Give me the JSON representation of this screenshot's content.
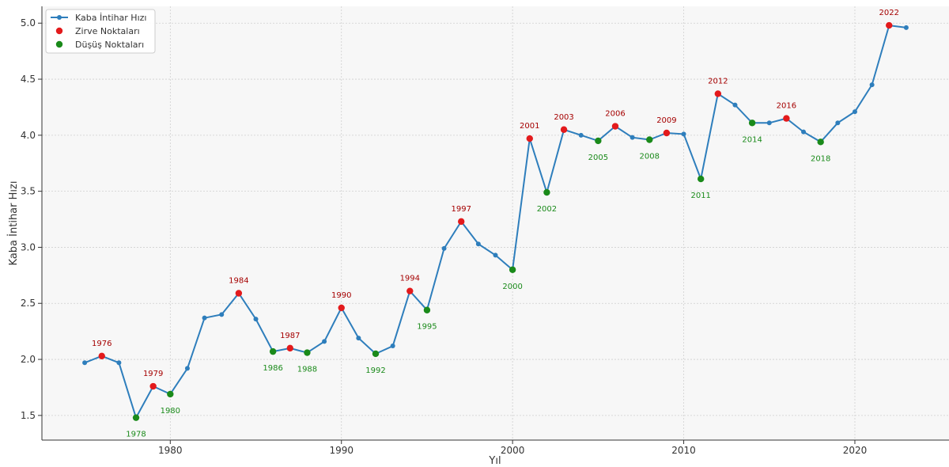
{
  "colors": {
    "line": "#2e7ebc",
    "peak": "#e31a1c",
    "trough": "#1a8a1a",
    "peak_label": "#a50000",
    "trough_label": "#1a8a1a",
    "plot_bg": "#f7f7f7",
    "grid": "#cfcfcf"
  },
  "chart_data": {
    "type": "line",
    "title": "",
    "xlabel": "Yıl",
    "ylabel": "Kaba İntihar Hızı",
    "xlim": [
      1972.5,
      2025.5
    ],
    "ylim": [
      1.28,
      5.15
    ],
    "xticks": [
      1980,
      1990,
      2000,
      2010,
      2020
    ],
    "yticks": [
      1.5,
      2.0,
      2.5,
      3.0,
      3.5,
      4.0,
      4.5,
      5.0
    ],
    "ytick_labels": [
      "1.5",
      "2.0",
      "2.5",
      "3.0",
      "3.5",
      "4.0",
      "4.5",
      "5.0"
    ],
    "grid": true,
    "legend_position": "top-left",
    "legend": [
      {
        "key": "line",
        "label": "Kaba İntihar Hızı"
      },
      {
        "key": "peak",
        "label": "Zirve Noktaları"
      },
      {
        "key": "trough",
        "label": "Düşüş Noktaları"
      }
    ],
    "series": [
      {
        "name": "Kaba İntihar Hızı",
        "x": [
          1975,
          1976,
          1977,
          1978,
          1979,
          1980,
          1981,
          1982,
          1983,
          1984,
          1985,
          1986,
          1987,
          1988,
          1989,
          1990,
          1991,
          1992,
          1993,
          1994,
          1995,
          1996,
          1997,
          1998,
          1999,
          2000,
          2001,
          2002,
          2003,
          2004,
          2005,
          2006,
          2007,
          2008,
          2009,
          2010,
          2011,
          2012,
          2013,
          2014,
          2015,
          2016,
          2017,
          2018,
          2019,
          2020,
          2021,
          2022,
          2023
        ],
        "y": [
          1.97,
          2.03,
          1.97,
          1.48,
          1.76,
          1.69,
          1.92,
          2.37,
          2.4,
          2.59,
          2.36,
          2.07,
          2.1,
          2.06,
          2.16,
          2.46,
          2.19,
          2.05,
          2.12,
          2.61,
          2.44,
          2.99,
          3.23,
          3.03,
          2.93,
          2.8,
          3.97,
          3.49,
          4.05,
          4.0,
          3.95,
          4.08,
          3.98,
          3.96,
          4.02,
          4.01,
          3.61,
          4.37,
          4.27,
          4.11,
          4.11,
          4.15,
          4.03,
          3.94,
          4.11,
          4.21,
          4.45,
          4.98,
          4.96
        ]
      }
    ],
    "peaks": [
      1976,
      1979,
      1984,
      1987,
      1990,
      1994,
      1997,
      2001,
      2003,
      2006,
      2009,
      2012,
      2016,
      2022
    ],
    "troughs": [
      1978,
      1980,
      1986,
      1988,
      1992,
      1995,
      2000,
      2002,
      2005,
      2008,
      2011,
      2014,
      2018
    ]
  }
}
